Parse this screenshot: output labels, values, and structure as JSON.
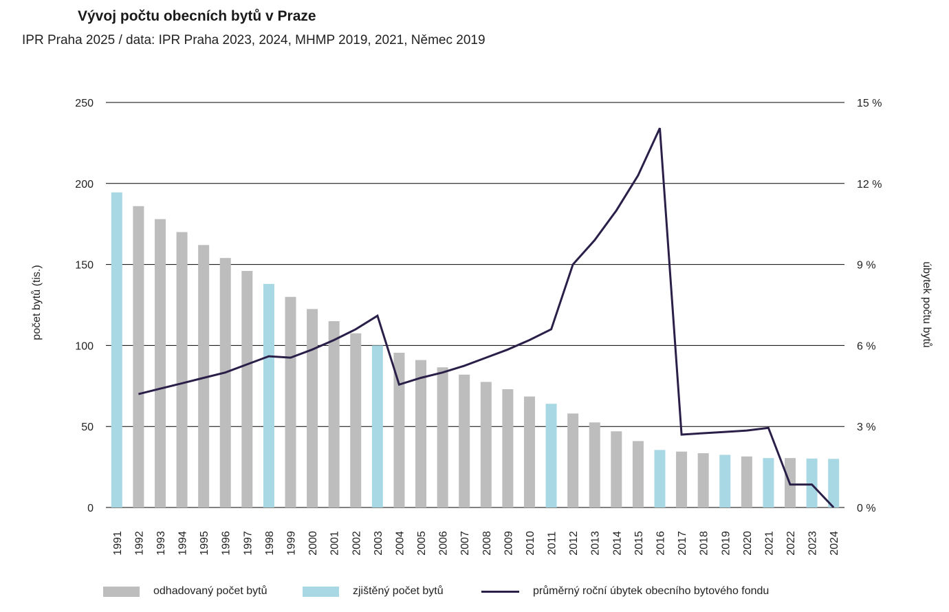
{
  "header": {
    "title": "Vývoj počtu obecních bytů v Praze",
    "subtitle": "IPR Praha 2025 / data: IPR Praha 2023, 2024, MHMP 2019, 2021, Němec 2019"
  },
  "colors": {
    "estimated": "#bdbdbd",
    "surveyed": "#a8d8e4",
    "line": "#2a1f48",
    "grid": "#000000"
  },
  "chart_data": {
    "type": "bar",
    "categories": [
      "1991",
      "1992",
      "1993",
      "1994",
      "1995",
      "1996",
      "1997",
      "1998",
      "1999",
      "2000",
      "2001",
      "2002",
      "2003",
      "2004",
      "2005",
      "2006",
      "2007",
      "2008",
      "2009",
      "2010",
      "2011",
      "2012",
      "2013",
      "2014",
      "2015",
      "2016",
      "2017",
      "2018",
      "2019",
      "2020",
      "2021",
      "2022",
      "2023",
      "2024"
    ],
    "series": [
      {
        "name": "odhadovaný počet bytů",
        "kind": "bar",
        "axis": "left",
        "values": [
          null,
          186,
          178,
          170,
          162,
          154,
          146,
          null,
          130,
          122.5,
          115,
          107.5,
          null,
          95.5,
          91,
          86.5,
          82,
          77.5,
          73,
          68.5,
          null,
          58,
          52.5,
          47,
          41,
          null,
          34.5,
          33.5,
          null,
          31.5,
          null,
          30.5,
          null,
          null
        ]
      },
      {
        "name": "zjištěný počet bytů",
        "kind": "bar",
        "axis": "left",
        "values": [
          194.5,
          null,
          null,
          null,
          null,
          null,
          null,
          138,
          null,
          null,
          null,
          null,
          100,
          null,
          null,
          null,
          null,
          null,
          null,
          null,
          64,
          null,
          null,
          null,
          null,
          35.5,
          null,
          null,
          32.5,
          null,
          30.5,
          null,
          30.2,
          30
        ]
      },
      {
        "name": "průměrný roční úbytek obecního bytového fondu",
        "kind": "line",
        "axis": "right",
        "values": [
          null,
          4.2,
          4.4,
          4.6,
          4.8,
          5.0,
          5.3,
          5.6,
          5.55,
          5.85,
          6.2,
          6.6,
          7.1,
          4.55,
          4.8,
          5.0,
          5.25,
          5.55,
          5.85,
          6.2,
          6.6,
          9.0,
          9.9,
          11.0,
          12.3,
          14.05,
          2.7,
          2.75,
          2.8,
          2.85,
          2.95,
          0.85,
          0.85,
          0.0
        ]
      }
    ],
    "ylabel": "počet bytů (tis.)",
    "ylabel_right": "úbytek počtu bytů",
    "ylim": [
      0,
      250
    ],
    "yticks": [
      0,
      50,
      100,
      150,
      200,
      250
    ],
    "ylim_right": [
      0,
      15
    ],
    "yticks_right": [
      "0 %",
      "3 %",
      "6 %",
      "9 %",
      "12 %",
      "15 %"
    ],
    "grid": true,
    "legend_position": "bottom"
  },
  "legend": [
    {
      "label": "odhadovaný počet bytů"
    },
    {
      "label": "zjištěný počet bytů"
    },
    {
      "label": "průměrný roční úbytek obecního bytového fondu"
    }
  ]
}
